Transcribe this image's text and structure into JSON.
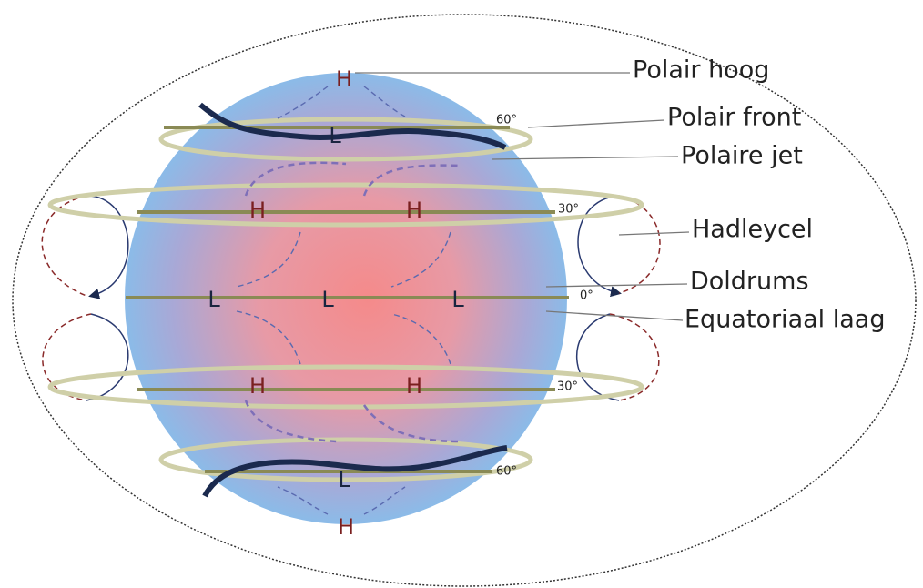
{
  "pressure_systems": [
    "H",
    "L",
    "H",
    "H",
    "L",
    "L",
    "L",
    "H",
    "H",
    "L",
    "H"
  ],
  "latitudes": [
    "60°",
    "30°",
    "0°",
    "30°",
    "60°"
  ],
  "labels": [
    "Polair hoog",
    "Polair front",
    "Polaire jet",
    "Hadleycel",
    "Doldrums",
    "Equatoriaal laag"
  ]
}
